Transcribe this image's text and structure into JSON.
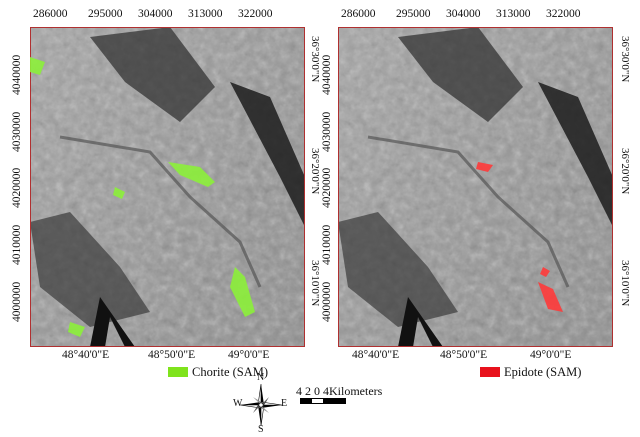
{
  "maps": [
    {
      "x_ticks": [
        "286000",
        "295000",
        "304000",
        "313000",
        "322000"
      ],
      "y_ticks": [
        "4040000",
        "4030000",
        "4020000",
        "4010000",
        "4000000"
      ],
      "lat_ticks": [
        "36°30'0\"N",
        "36°20'0\"N",
        "36°10'0\"N"
      ],
      "lon_ticks": [
        "48°40'0\"E",
        "48°50'0\"E",
        "49°0'0\"E"
      ],
      "legend_label": "Chorite (SAM)",
      "legend_color": "#7fe31c",
      "mineral_color": "#8cf03a"
    },
    {
      "x_ticks": [
        "286000",
        "295000",
        "304000",
        "313000",
        "322000"
      ],
      "y_ticks": [
        "4040000",
        "4030000",
        "4020000",
        "4010000",
        "4000000"
      ],
      "lat_ticks": [
        "36°30'0\"N",
        "36°20'0\"N",
        "36°10'0\"N"
      ],
      "lon_ticks": [
        "48°40'0\"E",
        "48°50'0\"E",
        "49°0'0\"E"
      ],
      "legend_label": "Epidote (SAM)",
      "legend_color": "#e8121c",
      "mineral_color": "#ff3a3a"
    }
  ],
  "compass": {
    "n": "N",
    "s": "S",
    "e": "E",
    "w": "W"
  },
  "scale": {
    "text": "4 2 0    4Kilometers"
  }
}
